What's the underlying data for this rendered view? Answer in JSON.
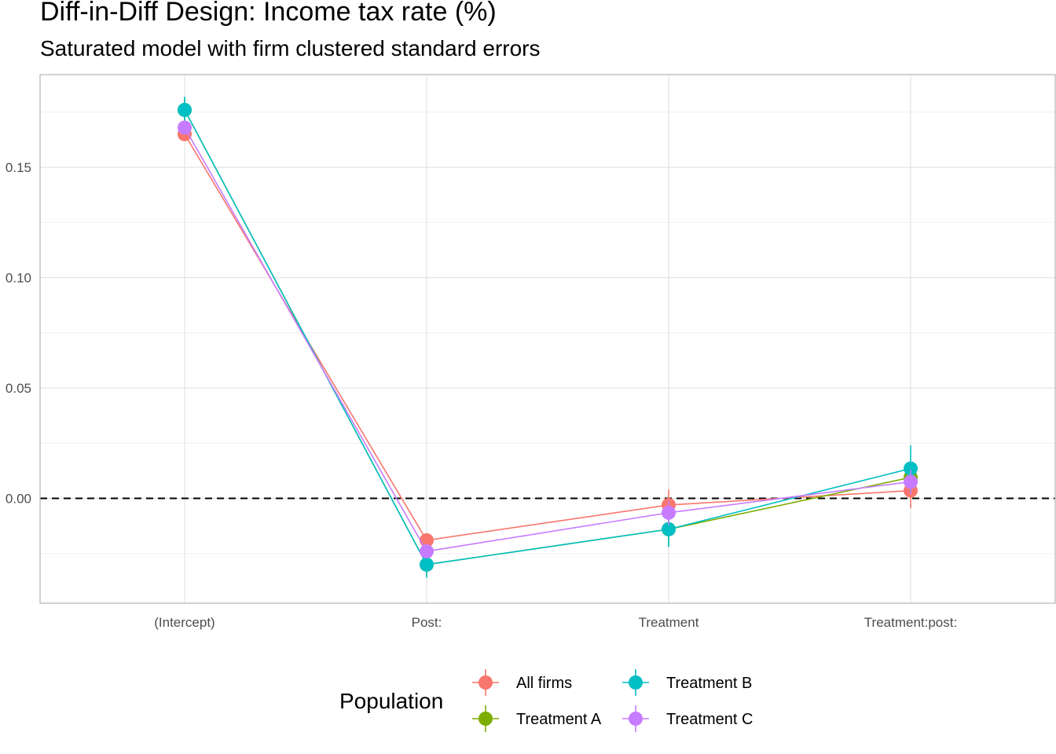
{
  "chart_data": {
    "type": "line",
    "title": "Diff-in-Diff Design: Income tax rate  (%)",
    "subtitle": "Saturated model with firm clustered standard errors",
    "xlabel": "",
    "ylabel": "",
    "categories": [
      "(Intercept)",
      "Post:",
      "Treatment",
      "Treatment:post:"
    ],
    "ylim": [
      -0.0475,
      0.192
    ],
    "yticks": [
      0.0,
      0.05,
      0.1,
      0.15
    ],
    "ytick_labels": [
      "0.00",
      "0.05",
      "0.10",
      "0.15"
    ],
    "reference_line": {
      "y": 0,
      "style": "dashed"
    },
    "grid": true,
    "legend": {
      "title": "Population",
      "position": "bottom"
    },
    "series": [
      {
        "name": "All firms",
        "color": "#F8766D",
        "values": [
          0.165,
          -0.019,
          -0.003,
          0.0035
        ],
        "ci_low": [
          0.163,
          -0.021,
          -0.01,
          -0.0045
        ],
        "ci_high": [
          0.167,
          -0.017,
          0.004,
          0.0115
        ]
      },
      {
        "name": "Treatment A",
        "color": "#7CAE00",
        "values": [
          0.176,
          -0.03,
          -0.014,
          0.0095
        ],
        "ci_low": [
          0.171,
          -0.035,
          -0.022,
          0.003
        ],
        "ci_high": [
          0.181,
          -0.025,
          -0.006,
          0.016
        ]
      },
      {
        "name": "Treatment B",
        "color": "#00BFC4",
        "values": [
          0.176,
          -0.03,
          -0.014,
          0.0135
        ],
        "ci_low": [
          0.17,
          -0.036,
          -0.022,
          0.003
        ],
        "ci_high": [
          0.182,
          -0.024,
          -0.006,
          0.024
        ]
      },
      {
        "name": "Treatment C",
        "color": "#C77CFF",
        "values": [
          0.168,
          -0.024,
          -0.0065,
          0.0075
        ],
        "ci_low": [
          0.165,
          -0.027,
          -0.012,
          0.002
        ],
        "ci_high": [
          0.171,
          -0.021,
          -0.001,
          0.013
        ]
      }
    ]
  }
}
